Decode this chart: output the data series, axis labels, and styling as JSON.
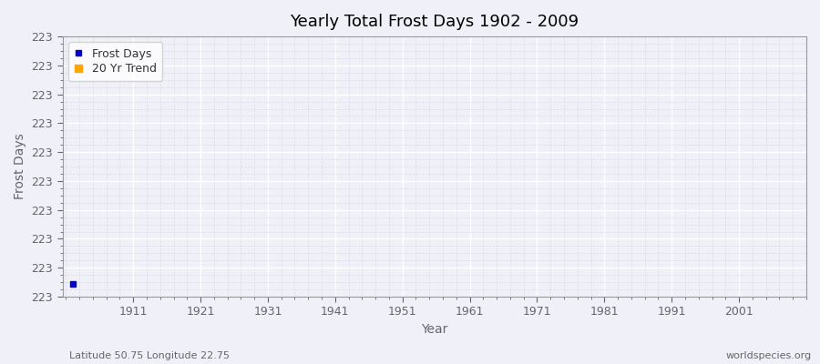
{
  "title": "Yearly Total Frost Days 1902 - 2009",
  "xlabel": "Year",
  "ylabel": "Frost Days",
  "year_start": 1902,
  "year_end": 2009,
  "frost_value": 223,
  "frost_days_color": "#0000cc",
  "trend_color": "#ffa500",
  "background_color": "#f0f0f8",
  "plot_bg_color": "#f0f0f8",
  "grid_major_color": "#ffffff",
  "grid_minor_color": "#dcdce8",
  "axis_color": "#999999",
  "tick_label_color": "#666666",
  "legend_labels": [
    "Frost Days",
    "20 Yr Trend"
  ],
  "subtitle_left": "Latitude 50.75 Longitude 22.75",
  "subtitle_right": "worldspecies.org",
  "xticks": [
    1911,
    1921,
    1931,
    1941,
    1951,
    1961,
    1971,
    1981,
    1991,
    2001
  ],
  "figsize": [
    9.0,
    4.0
  ],
  "dpi": 100,
  "num_yticks": 10,
  "ylim_range": 0.9
}
